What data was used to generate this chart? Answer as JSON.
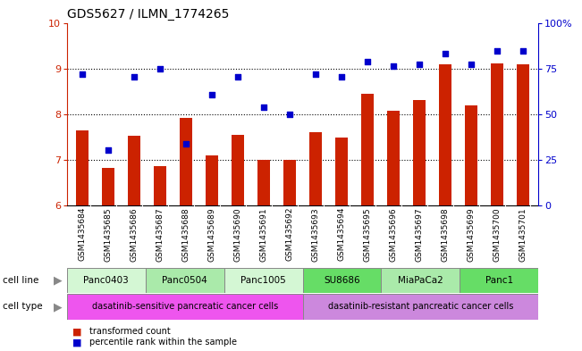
{
  "title": "GDS5627 / ILMN_1774265",
  "samples": [
    "GSM1435684",
    "GSM1435685",
    "GSM1435686",
    "GSM1435687",
    "GSM1435688",
    "GSM1435689",
    "GSM1435690",
    "GSM1435691",
    "GSM1435692",
    "GSM1435693",
    "GSM1435694",
    "GSM1435695",
    "GSM1435696",
    "GSM1435697",
    "GSM1435698",
    "GSM1435699",
    "GSM1435700",
    "GSM1435701"
  ],
  "bar_values": [
    7.65,
    6.82,
    7.52,
    6.85,
    7.92,
    7.1,
    7.55,
    7.0,
    7.0,
    7.6,
    7.48,
    8.45,
    8.07,
    8.3,
    9.1,
    8.2,
    9.12,
    9.1
  ],
  "dot_values": [
    8.88,
    7.22,
    8.82,
    9.0,
    7.35,
    8.42,
    8.82,
    8.15,
    8.0,
    8.88,
    8.82,
    9.15,
    9.05,
    9.1,
    9.32,
    9.1,
    9.38,
    9.38
  ],
  "ylim_left": [
    6,
    10
  ],
  "ylim_right": [
    0,
    100
  ],
  "yticks_left": [
    6,
    7,
    8,
    9,
    10
  ],
  "yticks_right": [
    0,
    25,
    50,
    75,
    100
  ],
  "ytick_labels_right": [
    "0",
    "25",
    "50",
    "75",
    "100%"
  ],
  "bar_color": "#cc2200",
  "dot_color": "#0000cc",
  "bar_width": 0.5,
  "cell_lines": [
    {
      "label": "Panc0403",
      "start": 0,
      "end": 2,
      "color": "#d4f7d4"
    },
    {
      "label": "Panc0504",
      "start": 3,
      "end": 5,
      "color": "#aaeaaa"
    },
    {
      "label": "Panc1005",
      "start": 6,
      "end": 8,
      "color": "#d4f7d4"
    },
    {
      "label": "SU8686",
      "start": 9,
      "end": 11,
      "color": "#66dd66"
    },
    {
      "label": "MiaPaCa2",
      "start": 12,
      "end": 14,
      "color": "#aaeaaa"
    },
    {
      "label": "Panc1",
      "start": 15,
      "end": 17,
      "color": "#66dd66"
    }
  ],
  "cell_types": [
    {
      "label": "dasatinib-sensitive pancreatic cancer cells",
      "start": 0,
      "end": 8,
      "color": "#ee55ee"
    },
    {
      "label": "dasatinib-resistant pancreatic cancer cells",
      "start": 9,
      "end": 17,
      "color": "#cc88dd"
    }
  ],
  "legend_bar_label": "transformed count",
  "legend_dot_label": "percentile rank within the sample",
  "cell_line_label": "cell line",
  "cell_type_label": "cell type",
  "grid_yticks": [
    7,
    8,
    9
  ],
  "title_fontsize": 10,
  "tick_fontsize": 6.5,
  "sample_bg_color": "#c8c8c8",
  "arrow_color": "#888888"
}
